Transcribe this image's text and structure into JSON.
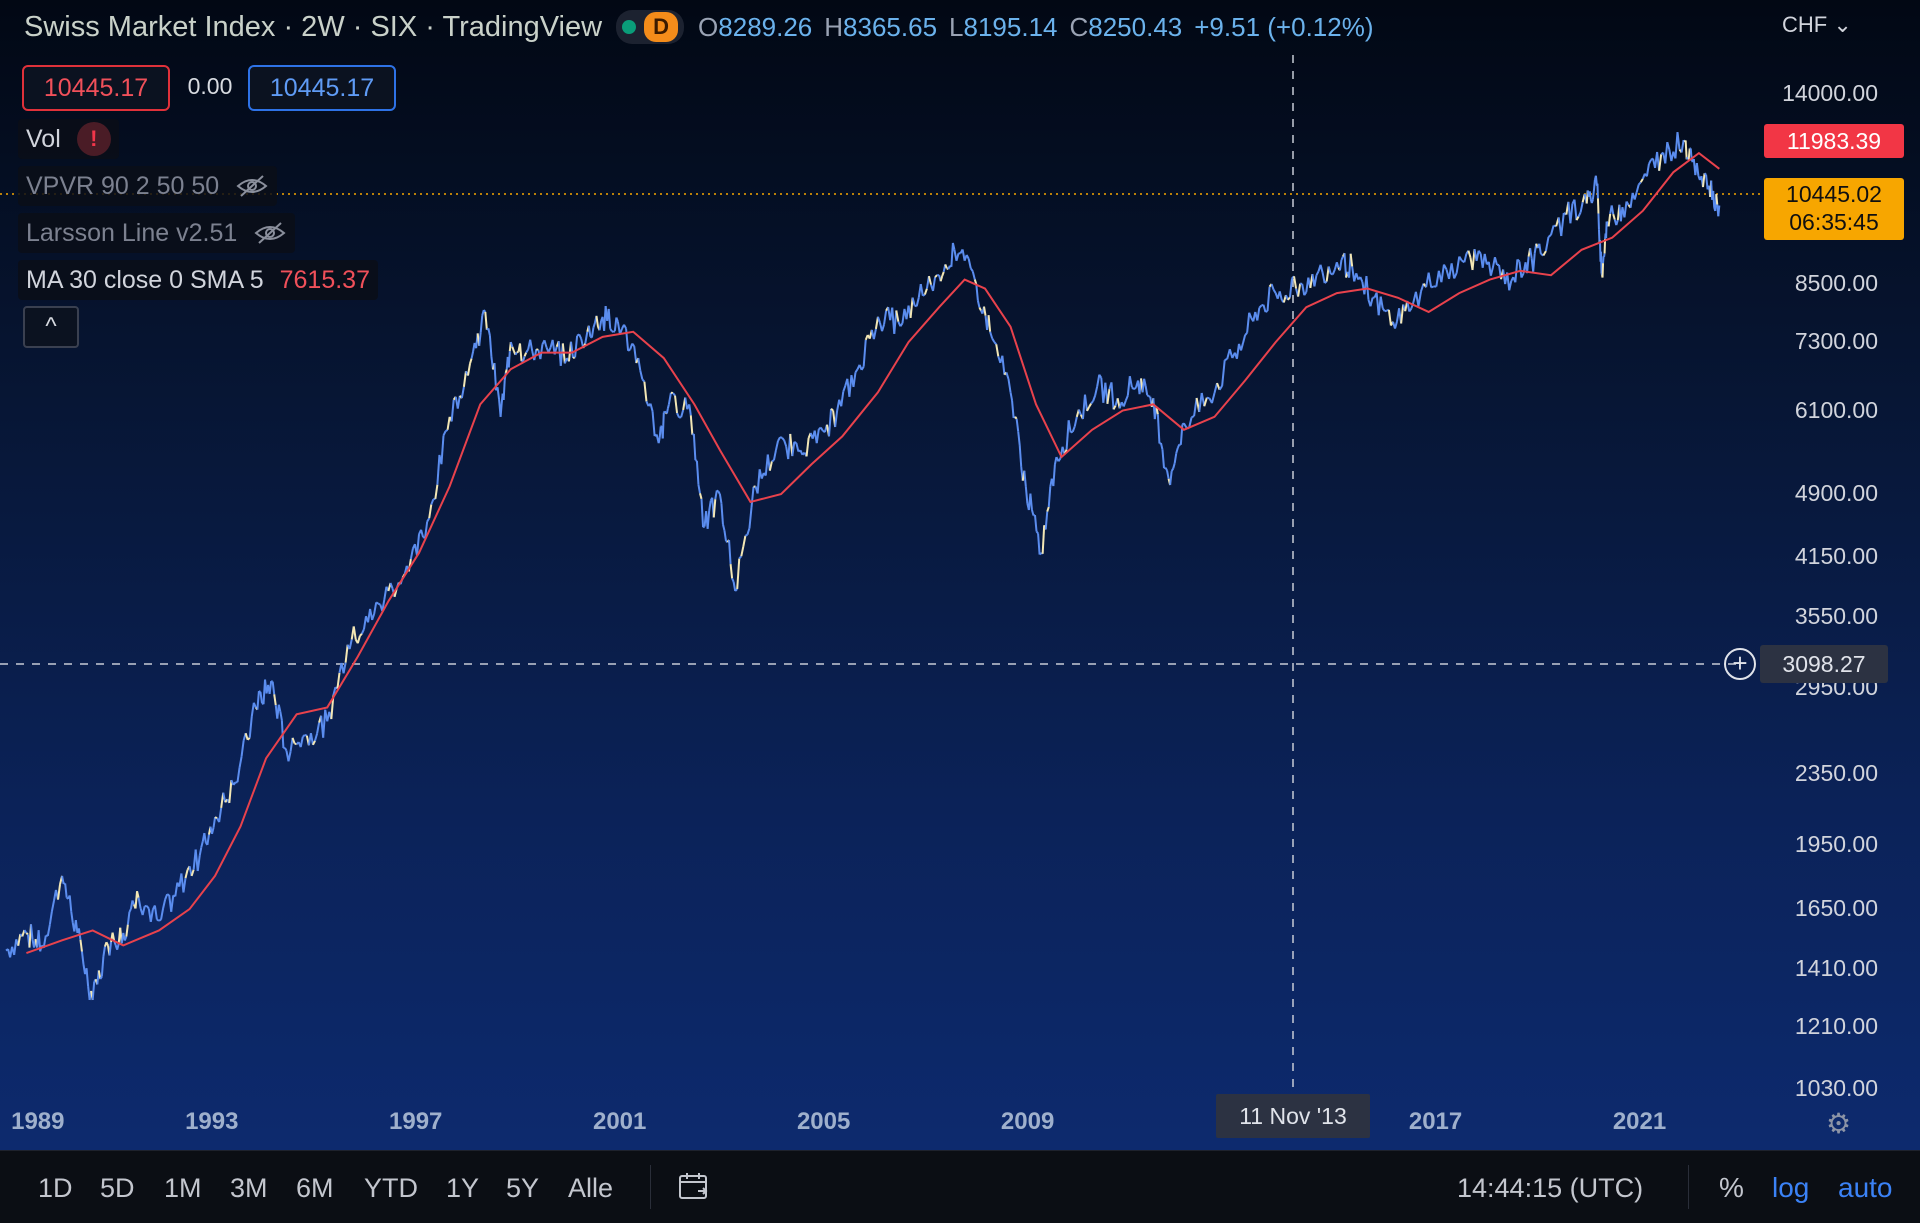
{
  "header": {
    "title": "Swiss Market Index · 2W · SIX · TradingView",
    "badge_letter": "D",
    "ohlc": {
      "o_label": "O",
      "o": "8289.26",
      "h_label": "H",
      "h": "8365.65",
      "l_label": "L",
      "l": "8195.14",
      "c_label": "C",
      "c": "8250.43",
      "change": "+9.51 (+0.12%)"
    }
  },
  "price_boxes": {
    "bid": "10445.17",
    "spread": "0.00",
    "ask": "10445.17"
  },
  "indicators": {
    "vol": "Vol",
    "vol_warning": "!",
    "vpvr": "VPVR 90 2 50 50",
    "larsson": "Larsson Line v2.51",
    "ma_label": "MA 30 close 0 SMA 5",
    "ma_value": "7615.37"
  },
  "collapse_glyph": "^",
  "currency": "CHF",
  "y_axis": {
    "ticks": [
      {
        "label": "14000.00",
        "value": 14000
      },
      {
        "label": "8500.00",
        "value": 8500
      },
      {
        "label": "7300.00",
        "value": 7300
      },
      {
        "label": "6100.00",
        "value": 6100
      },
      {
        "label": "4900.00",
        "value": 4900
      },
      {
        "label": "4150.00",
        "value": 4150
      },
      {
        "label": "3550.00",
        "value": 3550
      },
      {
        "label": "2950.00",
        "value": 2950
      },
      {
        "label": "2350.00",
        "value": 2350
      },
      {
        "label": "1950.00",
        "value": 1950
      },
      {
        "label": "1650.00",
        "value": 1650
      },
      {
        "label": "1410.00",
        "value": 1410
      },
      {
        "label": "1210.00",
        "value": 1210
      },
      {
        "label": "1030.00",
        "value": 1030
      }
    ],
    "tag_ma": "11983.39",
    "tag_last": "10445.02",
    "tag_countdown": "06:35:45",
    "tag_crosshair": "3098.27"
  },
  "x_axis": {
    "labels": [
      "1989",
      "1993",
      "1997",
      "2001",
      "2005",
      "2009",
      "2017",
      "2021"
    ],
    "crosshair_date": "11 Nov '13"
  },
  "toolbar": {
    "timeframes": [
      "1D",
      "5D",
      "1M",
      "3M",
      "6M",
      "YTD",
      "1Y",
      "5Y",
      "Alle"
    ],
    "time": "14:44:15 (UTC)",
    "percent": "%",
    "log": "log",
    "auto": "auto"
  },
  "colors": {
    "price_line": "#5b8def",
    "price_highlight": "#f3e7b5",
    "ma_line": "#e8424c",
    "last_price": "#f7a600",
    "accent_blue": "#3b82f6"
  },
  "chart_data": {
    "type": "line",
    "scale": "log",
    "ylim": [
      1000,
      15500
    ],
    "xlim": [
      1988.9,
      2023.2
    ],
    "series": [
      {
        "x": [
          1988.9,
          1989.3,
          1989.6,
          1990.0,
          1990.3,
          1990.6,
          1990.9,
          1991.2,
          1991.5,
          1991.9,
          1992.3,
          1992.7,
          1993.0,
          1993.4,
          1993.8,
          1994.1,
          1994.4,
          1994.8,
          1995.2,
          1995.6,
          1996.0,
          1996.4,
          1996.8,
          1997.2,
          1997.6,
          1998.0,
          1998.3,
          1998.6,
          1998.8,
          1999.1,
          1999.5,
          1999.9,
          2000.3,
          2000.6,
          2000.9,
          2001.3,
          2001.7,
          2001.9,
          2002.3,
          2002.6,
          2002.9,
          2003.2,
          2003.6,
          2004.0,
          2004.4,
          2004.8,
          2005.2,
          2005.6,
          2006.0,
          2006.4,
          2006.8,
          2007.2,
          2007.5,
          2007.9,
          2008.2,
          2008.6,
          2008.9,
          2009.2,
          2009.5,
          2009.9,
          2010.3,
          2010.7,
          2011.1,
          2011.4,
          2011.7,
          2012.0,
          2012.5,
          2013.0,
          2013.4,
          2013.8,
          2014.2,
          2014.6,
          2015.0,
          2015.3,
          2015.7,
          2016.1,
          2016.5,
          2017.0,
          2017.5,
          2017.9,
          2018.3,
          2018.7,
          2019.0,
          2019.5,
          2019.9,
          2020.1,
          2020.2,
          2020.3,
          2020.6,
          2021.0,
          2021.4,
          2021.8,
          2022.0,
          2022.3,
          2022.5
        ],
        "y": [
          1480,
          1550,
          1500,
          1800,
          1550,
          1300,
          1500,
          1550,
          1700,
          1600,
          1750,
          1900,
          2100,
          2300,
          2800,
          3000,
          2500,
          2600,
          2700,
          3300,
          3500,
          3800,
          4000,
          4600,
          6000,
          6900,
          7900,
          6000,
          7300,
          7100,
          7200,
          7000,
          7500,
          7800,
          7700,
          7000,
          5600,
          6200,
          6200,
          4500,
          4900,
          3800,
          5000,
          5500,
          5600,
          5600,
          6100,
          6800,
          7800,
          7700,
          8200,
          8700,
          9300,
          8600,
          7500,
          6400,
          5000,
          4200,
          5400,
          6000,
          6500,
          6300,
          6600,
          6300,
          5100,
          5900,
          6300,
          7100,
          7900,
          8300,
          8400,
          8700,
          9000,
          8900,
          8200,
          7700,
          8100,
          8800,
          9000,
          9200,
          8500,
          9000,
          9200,
          10200,
          10500,
          11000,
          8700,
          10000,
          10400,
          11200,
          12000,
          12400,
          11800,
          11000,
          10445
        ]
      },
      {
        "x": [
          1989.3,
          1990.0,
          1990.6,
          1991.2,
          1991.9,
          1992.5,
          1993.0,
          1993.5,
          1994.0,
          1994.6,
          1995.2,
          1995.8,
          1996.4,
          1997.0,
          1997.6,
          1998.2,
          1998.8,
          1999.4,
          2000.0,
          2000.6,
          2001.2,
          2001.8,
          2002.4,
          2002.9,
          2003.5,
          2004.1,
          2004.7,
          2005.3,
          2006.0,
          2006.6,
          2007.2,
          2007.7,
          2008.1,
          2008.6,
          2009.1,
          2009.6,
          2010.2,
          2010.8,
          2011.4,
          2012.0,
          2012.6,
          2013.2,
          2013.8,
          2014.4,
          2015.0,
          2015.6,
          2016.2,
          2016.8,
          2017.4,
          2018.0,
          2018.6,
          2019.2,
          2019.8,
          2020.4,
          2021.0,
          2021.6,
          2022.1,
          2022.5
        ],
        "y": [
          1470,
          1520,
          1560,
          1500,
          1560,
          1650,
          1800,
          2050,
          2450,
          2750,
          2800,
          3200,
          3700,
          4200,
          5000,
          6200,
          6800,
          7100,
          7100,
          7400,
          7500,
          7000,
          6200,
          5500,
          4800,
          4900,
          5300,
          5700,
          6400,
          7300,
          8000,
          8600,
          8400,
          7600,
          6200,
          5400,
          5800,
          6100,
          6200,
          5800,
          6000,
          6600,
          7300,
          8000,
          8300,
          8400,
          8200,
          7900,
          8300,
          8600,
          8800,
          8700,
          9300,
          9600,
          10300,
          11400,
          11983,
          11500
        ]
      }
    ]
  }
}
